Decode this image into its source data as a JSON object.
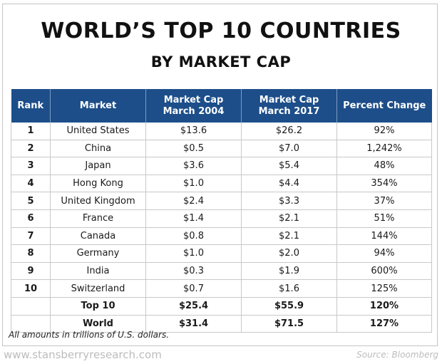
{
  "title": "WORLD’S TOP 10 COUNTRIES",
  "subtitle": "BY MARKET CAP",
  "footnote": "All amounts in trillions of U.S. dollars.",
  "website": "www.stansberryresearch.com",
  "source": "Source: Bloomberg",
  "colors": {
    "header_bg": "#1d4e89",
    "header_text": "#ffffff",
    "grid": "#c8c8c8"
  },
  "chart_data": {
    "type": "table",
    "title": "WORLD’S TOP 10 COUNTRIES",
    "subtitle": "BY MARKET CAP",
    "columns": [
      {
        "line1": "Rank",
        "line2": ""
      },
      {
        "line1": "Market",
        "line2": ""
      },
      {
        "line1": "Market Cap",
        "line2": "March 2004"
      },
      {
        "line1": "Market Cap",
        "line2": "March 2017"
      },
      {
        "line1": "Percent Change",
        "line2": ""
      }
    ],
    "rows": [
      [
        "1",
        "United States",
        "$13.6",
        "$26.2",
        "92%"
      ],
      [
        "2",
        "China",
        "$0.5",
        "$7.0",
        "1,242%"
      ],
      [
        "3",
        "Japan",
        "$3.6",
        "$5.4",
        "48%"
      ],
      [
        "4",
        "Hong Kong",
        "$1.0",
        "$4.4",
        "354%"
      ],
      [
        "5",
        "United Kingdom",
        "$2.4",
        "$3.3",
        "37%"
      ],
      [
        "6",
        "France",
        "$1.4",
        "$2.1",
        "51%"
      ],
      [
        "7",
        "Canada",
        "$0.8",
        "$2.1",
        "144%"
      ],
      [
        "8",
        "Germany",
        "$1.0",
        "$2.0",
        "94%"
      ],
      [
        "9",
        "India",
        "$0.3",
        "$1.9",
        "600%"
      ],
      [
        "10",
        "Switzerland",
        "$0.7",
        "$1.6",
        "125%"
      ]
    ],
    "totals": [
      [
        "",
        "Top 10",
        "$25.4",
        "$55.9",
        "120%"
      ],
      [
        "",
        "World",
        "$31.4",
        "$71.5",
        "127%"
      ]
    ]
  }
}
